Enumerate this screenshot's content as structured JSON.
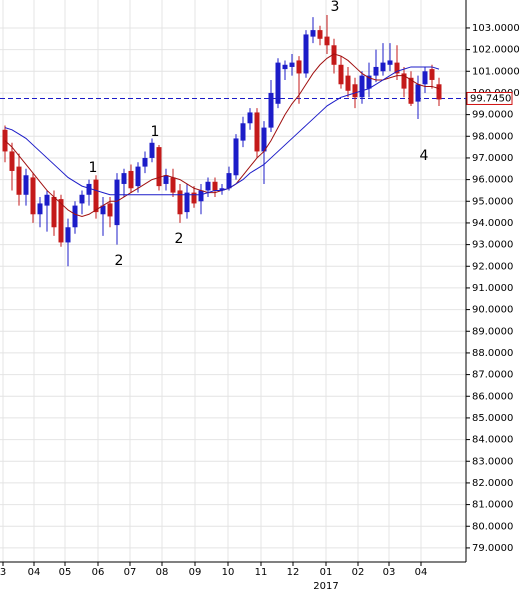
{
  "chart_data": {
    "type": "candlestick",
    "ylim": [
      78.35,
      104.29
    ],
    "yticks": [
      {
        "value": 79,
        "label": "79.0000"
      },
      {
        "value": 80,
        "label": "80.0000"
      },
      {
        "value": 81,
        "label": "81.0000"
      },
      {
        "value": 82,
        "label": "82.0000"
      },
      {
        "value": 83,
        "label": "83.0000"
      },
      {
        "value": 84,
        "label": "84.0000"
      },
      {
        "value": 85,
        "label": "85.0000"
      },
      {
        "value": 86,
        "label": "86.0000"
      },
      {
        "value": 87,
        "label": "87.0000"
      },
      {
        "value": 88,
        "label": "88.0000"
      },
      {
        "value": 89,
        "label": "89.0000"
      },
      {
        "value": 90,
        "label": "90.0000"
      },
      {
        "value": 91,
        "label": "91.0000"
      },
      {
        "value": 92,
        "label": "92.0000"
      },
      {
        "value": 93,
        "label": "93.0000"
      },
      {
        "value": 94,
        "label": "94.0000"
      },
      {
        "value": 95,
        "label": "95.0000"
      },
      {
        "value": 96,
        "label": "96.0000"
      },
      {
        "value": 97,
        "label": "97.0000"
      },
      {
        "value": 98,
        "label": "98.0000"
      },
      {
        "value": 99,
        "label": "99.0000"
      },
      {
        "value": 100,
        "label": "100.0000"
      },
      {
        "value": 101,
        "label": "101.0000"
      },
      {
        "value": 102,
        "label": "102.0000"
      },
      {
        "value": 103,
        "label": "103.0000"
      }
    ],
    "x_labels": [
      "3",
      "04",
      "05",
      "06",
      "07",
      "08",
      "09",
      "10",
      "11",
      "12",
      "01",
      "02",
      "03",
      "04"
    ],
    "x_sublabel": "2017",
    "grid": true,
    "up_color": "#1c1cc8",
    "down_color": "#c41a1a",
    "ohlc": {
      "open": [
        98.3,
        97.3,
        96.6,
        95.3,
        96.1,
        94.4,
        94.8,
        95.2,
        95.1,
        93.1,
        93.8,
        94.9,
        95.3,
        96.0,
        94.4,
        94.9,
        93.9,
        95.8,
        96.4,
        95.7,
        96.6,
        97.0,
        97.5,
        95.8,
        96.1,
        95.5,
        94.5,
        95.4,
        95.0,
        95.5,
        95.9,
        95.5,
        95.6,
        96.2,
        97.8,
        98.6,
        99.1,
        97.3,
        98.4,
        99.5,
        101.1,
        101.2,
        101.5,
        100.9,
        102.6,
        102.9,
        102.6,
        102.2,
        101.3,
        100.8,
        100.4,
        99.8,
        100.2,
        100.8,
        101.0,
        101.3,
        101.4,
        100.9,
        100.7,
        99.6,
        100.4,
        101.1,
        100.4
      ],
      "high": [
        98.5,
        97.7,
        97.2,
        96.5,
        96.3,
        95.2,
        95.5,
        95.5,
        95.3,
        94.2,
        95.0,
        95.5,
        96.0,
        96.2,
        95.2,
        95.2,
        96.3,
        96.5,
        96.7,
        96.8,
        97.3,
        97.9,
        97.6,
        96.5,
        96.5,
        95.8,
        95.8,
        95.7,
        95.8,
        96.1,
        96.1,
        95.8,
        96.6,
        98.1,
        98.9,
        99.3,
        99.3,
        98.7,
        100.6,
        101.6,
        101.5,
        101.8,
        101.7,
        102.9,
        103.5,
        103.1,
        103.6,
        102.5,
        101.7,
        101.2,
        100.7,
        101.0,
        101.4,
        102.0,
        102.3,
        102.3,
        102.2,
        101.2,
        101.0,
        100.8,
        101.2,
        101.3,
        100.7
      ],
      "low": [
        96.8,
        95.5,
        94.8,
        94.8,
        94.0,
        93.8,
        93.6,
        93.4,
        92.9,
        92.0,
        93.5,
        94.4,
        94.8,
        94.2,
        93.4,
        93.8,
        93.0,
        95.2,
        95.4,
        95.4,
        96.3,
        96.8,
        95.5,
        95.5,
        95.2,
        94.0,
        94.2,
        94.7,
        94.4,
        95.2,
        95.2,
        95.3,
        95.5,
        96.0,
        97.5,
        98.3,
        97.0,
        95.8,
        98.2,
        99.3,
        100.6,
        100.8,
        99.5,
        100.7,
        102.3,
        102.2,
        101.8,
        100.9,
        100.2,
        99.8,
        99.3,
        99.5,
        99.8,
        100.5,
        100.8,
        101.0,
        100.6,
        99.8,
        99.4,
        98.8,
        100.0,
        100.2,
        99.4
      ],
      "close": [
        97.3,
        96.4,
        95.3,
        96.2,
        94.4,
        94.9,
        95.3,
        93.8,
        93.1,
        93.8,
        94.8,
        95.3,
        95.8,
        94.5,
        94.8,
        94.3,
        96.0,
        96.3,
        95.6,
        96.6,
        97.0,
        97.7,
        95.7,
        96.2,
        95.4,
        94.4,
        95.4,
        94.9,
        95.5,
        95.9,
        95.5,
        95.6,
        96.3,
        97.9,
        98.6,
        99.1,
        97.3,
        98.4,
        100.0,
        101.4,
        101.3,
        101.4,
        100.9,
        102.7,
        102.9,
        102.5,
        102.2,
        101.3,
        100.4,
        100.1,
        99.8,
        100.8,
        100.8,
        101.2,
        101.4,
        101.5,
        100.9,
        100.2,
        99.5,
        100.4,
        101.0,
        100.6,
        99.7
      ]
    },
    "ma_lines": [
      {
        "color": "#a01010",
        "values": [
          97.8,
          97.5,
          97.1,
          96.7,
          96.3,
          95.9,
          95.5,
          95.2,
          94.9,
          94.6,
          94.4,
          94.3,
          94.4,
          94.6,
          94.8,
          95.0,
          95.0,
          95.2,
          95.4,
          95.6,
          95.8,
          96.0,
          96.1,
          96.2,
          96.1,
          96.0,
          95.8,
          95.6,
          95.5,
          95.4,
          95.4,
          95.5,
          95.6,
          95.8,
          96.2,
          96.6,
          97.0,
          97.3,
          97.8,
          98.4,
          99.0,
          99.5,
          99.9,
          100.4,
          100.9,
          101.3,
          101.6,
          101.8,
          101.7,
          101.5,
          101.2,
          100.9,
          100.7,
          100.6,
          100.6,
          100.7,
          100.8,
          100.8,
          100.6,
          100.4,
          100.3,
          100.3,
          100.2
        ]
      },
      {
        "color": "#1c1cc8",
        "values": [
          98.4,
          98.3,
          98.1,
          97.9,
          97.6,
          97.3,
          97.0,
          96.7,
          96.4,
          96.1,
          95.9,
          95.7,
          95.6,
          95.5,
          95.4,
          95.3,
          95.3,
          95.3,
          95.3,
          95.3,
          95.3,
          95.3,
          95.3,
          95.3,
          95.3,
          95.3,
          95.3,
          95.3,
          95.3,
          95.4,
          95.5,
          95.5,
          95.6,
          95.8,
          96.0,
          96.3,
          96.5,
          96.7,
          97.0,
          97.3,
          97.6,
          97.9,
          98.2,
          98.5,
          98.8,
          99.1,
          99.4,
          99.6,
          99.8,
          99.9,
          100.0,
          100.1,
          100.2,
          100.4,
          100.6,
          100.8,
          101.0,
          101.1,
          101.2,
          101.2,
          101.2,
          101.2,
          101.1
        ]
      }
    ],
    "last_price": {
      "value": 99.745,
      "label": "99.7450",
      "color": "#1c1cc8",
      "label_color": "#d01010"
    },
    "annotations": [
      {
        "text": "1",
        "color": "#d01818"
      },
      {
        "text": "2",
        "color": "#d01818"
      },
      {
        "text": "1",
        "color": "#2a2ab8"
      },
      {
        "text": "2",
        "color": "#2a2ab8"
      },
      {
        "text": "3",
        "color": "#4a2a9a"
      },
      {
        "text": "4",
        "color": "#4a2a9a"
      }
    ]
  }
}
